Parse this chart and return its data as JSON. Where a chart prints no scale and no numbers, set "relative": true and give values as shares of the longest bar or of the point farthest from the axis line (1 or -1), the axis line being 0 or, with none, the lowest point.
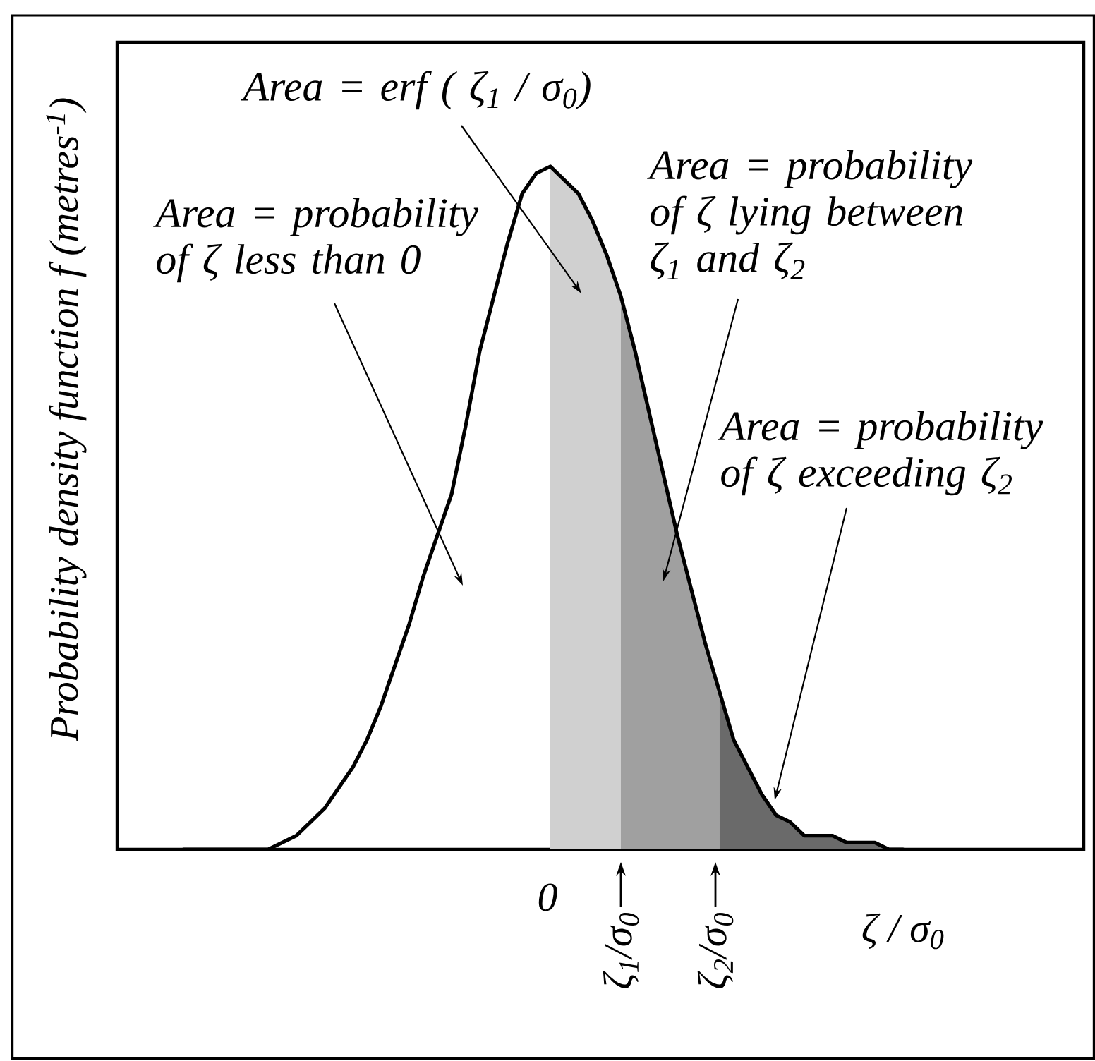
{
  "chart_data": {
    "type": "line",
    "relative": true,
    "ylabel": "Probability density function f (metres$^{-1}$)",
    "xlabel": "ζ / σ$_{0}$",
    "categories": [
      null,
      null,
      null,
      null,
      null,
      null,
      null,
      null,
      null,
      null,
      null,
      null,
      null,
      null,
      null,
      null,
      null,
      null,
      null,
      null,
      null,
      null,
      null,
      null,
      null,
      null,
      null,
      null,
      null,
      null,
      null,
      null,
      null,
      null,
      null,
      null,
      null,
      null,
      null,
      null,
      null,
      null,
      null,
      null,
      null,
      null,
      null,
      null,
      null,
      null,
      null,
      null
    ],
    "series": [
      {
        "type": "area",
        "color": "#d0d0d0",
        "values": [
          null,
          null,
          null,
          null,
          null,
          null,
          null,
          null,
          null,
          null,
          null,
          null,
          null,
          null,
          null,
          null,
          null,
          null,
          null,
          null,
          null,
          null,
          null,
          null,
          null,
          null,
          1,
          0.98,
          0.96,
          0.92,
          0.87,
          0.81,
          null,
          null,
          null,
          null,
          null,
          null,
          null,
          null,
          null,
          null,
          null,
          null,
          null,
          null,
          null,
          null,
          null,
          null,
          null,
          null
        ]
      },
      {
        "type": "area",
        "color": "#a0a0a0",
        "values": [
          null,
          null,
          null,
          null,
          null,
          null,
          null,
          null,
          null,
          null,
          null,
          null,
          null,
          null,
          null,
          null,
          null,
          null,
          null,
          null,
          null,
          null,
          null,
          null,
          null,
          null,
          null,
          null,
          null,
          null,
          null,
          0.81,
          0.73,
          0.64,
          0.55,
          0.46,
          0.38,
          0.3,
          0.23,
          null,
          null,
          null,
          null,
          null,
          null,
          null,
          null,
          null,
          null,
          null,
          null,
          null
        ]
      },
      {
        "type": "area",
        "color": "#6a6a6a",
        "values": [
          null,
          null,
          null,
          null,
          null,
          null,
          null,
          null,
          null,
          null,
          null,
          null,
          null,
          null,
          null,
          null,
          null,
          null,
          null,
          null,
          null,
          null,
          null,
          null,
          null,
          null,
          null,
          null,
          null,
          null,
          null,
          null,
          null,
          null,
          null,
          null,
          null,
          null,
          0.23,
          0.16,
          0.12,
          0.08,
          0.05,
          0.04,
          0.02,
          0.02,
          0.02,
          0.01,
          0.01,
          0.01,
          0,
          0
        ]
      },
      {
        "color": "#000000",
        "values": [
          0,
          0,
          0,
          0,
          0,
          0,
          0,
          0.01,
          0.02,
          0.04,
          0.06,
          0.09,
          0.12,
          0.16,
          0.21,
          0.27,
          0.33,
          0.4,
          0.46,
          0.52,
          0.62,
          0.73,
          0.81,
          0.89,
          0.96,
          0.99,
          1,
          0.98,
          0.96,
          0.92,
          0.87,
          0.81,
          0.73,
          0.64,
          0.55,
          0.46,
          0.38,
          0.3,
          0.23,
          0.16,
          0.12,
          0.08,
          0.05,
          0.04,
          0.02,
          0.02,
          0.02,
          0.01,
          0.01,
          0.01,
          0,
          0
        ]
      }
    ],
    "annotations": [
      "Area = erf ( ζ$_{1}$ / σ$_{0}$)",
      "Area = probability of ζ less than 0",
      "Area = probability of ζ lying between ζ$_{1}$ and ζ$_{2}$",
      "Area = probability of ζ exceeding ζ$_{2}$",
      "0",
      "ζ$_{1}$/σ$_{0}$",
      "ζ$_{2}$/σ$_{0}$"
    ]
  }
}
